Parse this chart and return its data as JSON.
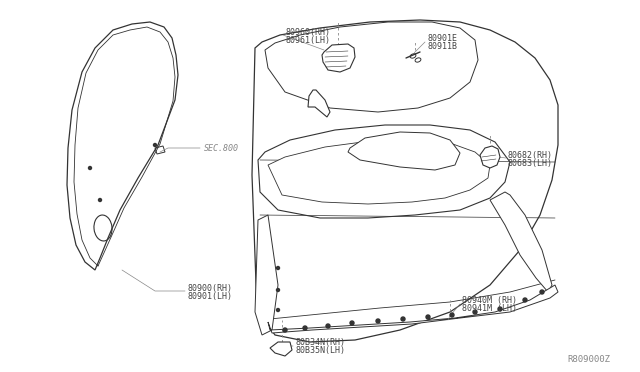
{
  "background_color": "#ffffff",
  "line_color": "#333333",
  "text_color": "#444444",
  "leader_color": "#888888",
  "font_size": 6.0,
  "labels": {
    "80960": "80960(RH)",
    "80961": "80961(LH)",
    "80901E": "80901E",
    "80911B": "80911B",
    "SEC800": "SEC.800",
    "80682": "80682(RH)",
    "80683": "80683(LH)",
    "80900": "80900(RH)",
    "80901": "80901(LH)",
    "80940M": "80940M (RH)",
    "80941M": "80941M (LH)",
    "80B34N": "80B34N(RH)",
    "80B35N": "80B35N(LH)",
    "watermark": "R809000Z"
  }
}
